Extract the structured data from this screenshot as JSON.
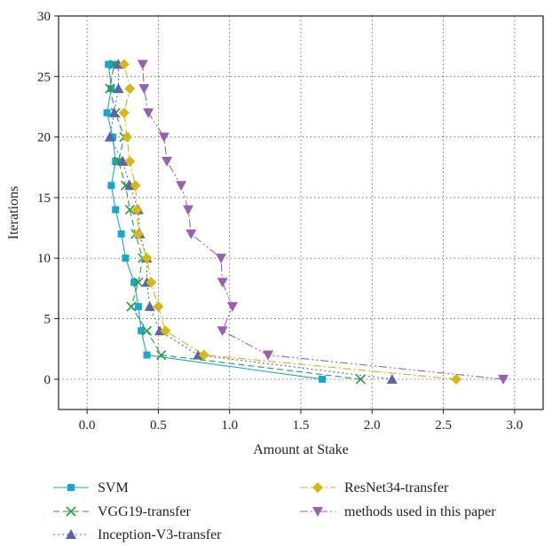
{
  "chart_data": {
    "type": "line",
    "title": "",
    "xlabel": "Amount at Stake",
    "ylabel": "Iterations",
    "xlim": [
      -0.2,
      3.2
    ],
    "ylim": [
      -2.5,
      30
    ],
    "xticks": [
      "0.0",
      "0.5",
      "1.0",
      "1.5",
      "2.0",
      "2.5",
      "3.0"
    ],
    "yticks": [
      "0",
      "5",
      "10",
      "15",
      "20",
      "25",
      "30"
    ],
    "grid": "dotted-major",
    "legend_position": "bottom",
    "series": [
      {
        "name": "SVM",
        "color": "#1aa7cc",
        "marker": "square",
        "dash": "solid",
        "x": [
          1.65,
          0.42,
          0.38,
          0.36,
          0.33,
          0.27,
          0.24,
          0.2,
          0.17,
          0.2,
          0.18,
          0.14,
          0.17,
          0.15,
          0.18
        ],
        "y": [
          0,
          2,
          4,
          6,
          8,
          10,
          12,
          14,
          16,
          18,
          20,
          22,
          24,
          26,
          26
        ]
      },
      {
        "name": "VGG19-transfer",
        "color": "#2c9a3e",
        "marker": "x",
        "dash": "dashed",
        "x": [
          1.92,
          0.52,
          0.42,
          0.31,
          0.36,
          0.39,
          0.34,
          0.3,
          0.27,
          0.22,
          0.26,
          0.2,
          0.16,
          0.19
        ],
        "y": [
          0,
          2,
          4,
          6,
          8,
          10,
          12,
          14,
          16,
          18,
          20,
          22,
          24,
          26
        ]
      },
      {
        "name": "Inception-V3-transfer",
        "color": "#5a64a8",
        "marker": "triangle-up",
        "dash": "dotted",
        "x": [
          2.14,
          0.78,
          0.51,
          0.44,
          0.42,
          0.42,
          0.37,
          0.36,
          0.3,
          0.25,
          0.16,
          0.19,
          0.22,
          0.22
        ],
        "y": [
          0,
          2,
          4,
          6,
          8,
          10,
          12,
          14,
          16,
          18,
          20,
          22,
          24,
          26
        ]
      },
      {
        "name": "ResNet34-transfer",
        "color": "#d6b713",
        "marker": "diamond",
        "dash": "dashdot",
        "x": [
          2.59,
          0.82,
          0.55,
          0.5,
          0.45,
          0.42,
          0.36,
          0.35,
          0.34,
          0.3,
          0.28,
          0.26,
          0.3,
          0.26
        ],
        "y": [
          0,
          2,
          4,
          6,
          8,
          10,
          12,
          14,
          16,
          18,
          20,
          22,
          24,
          26
        ]
      },
      {
        "name": "methods used in this paper",
        "color": "#9b5fb0",
        "marker": "triangle-down",
        "dash": "dashdotdot",
        "x": [
          2.92,
          1.27,
          0.95,
          1.02,
          0.95,
          0.94,
          0.73,
          0.71,
          0.66,
          0.56,
          0.54,
          0.43,
          0.4,
          0.39
        ],
        "y": [
          0,
          2,
          4,
          6,
          8,
          10,
          12,
          14,
          16,
          18,
          20,
          22,
          24,
          26
        ]
      }
    ]
  }
}
